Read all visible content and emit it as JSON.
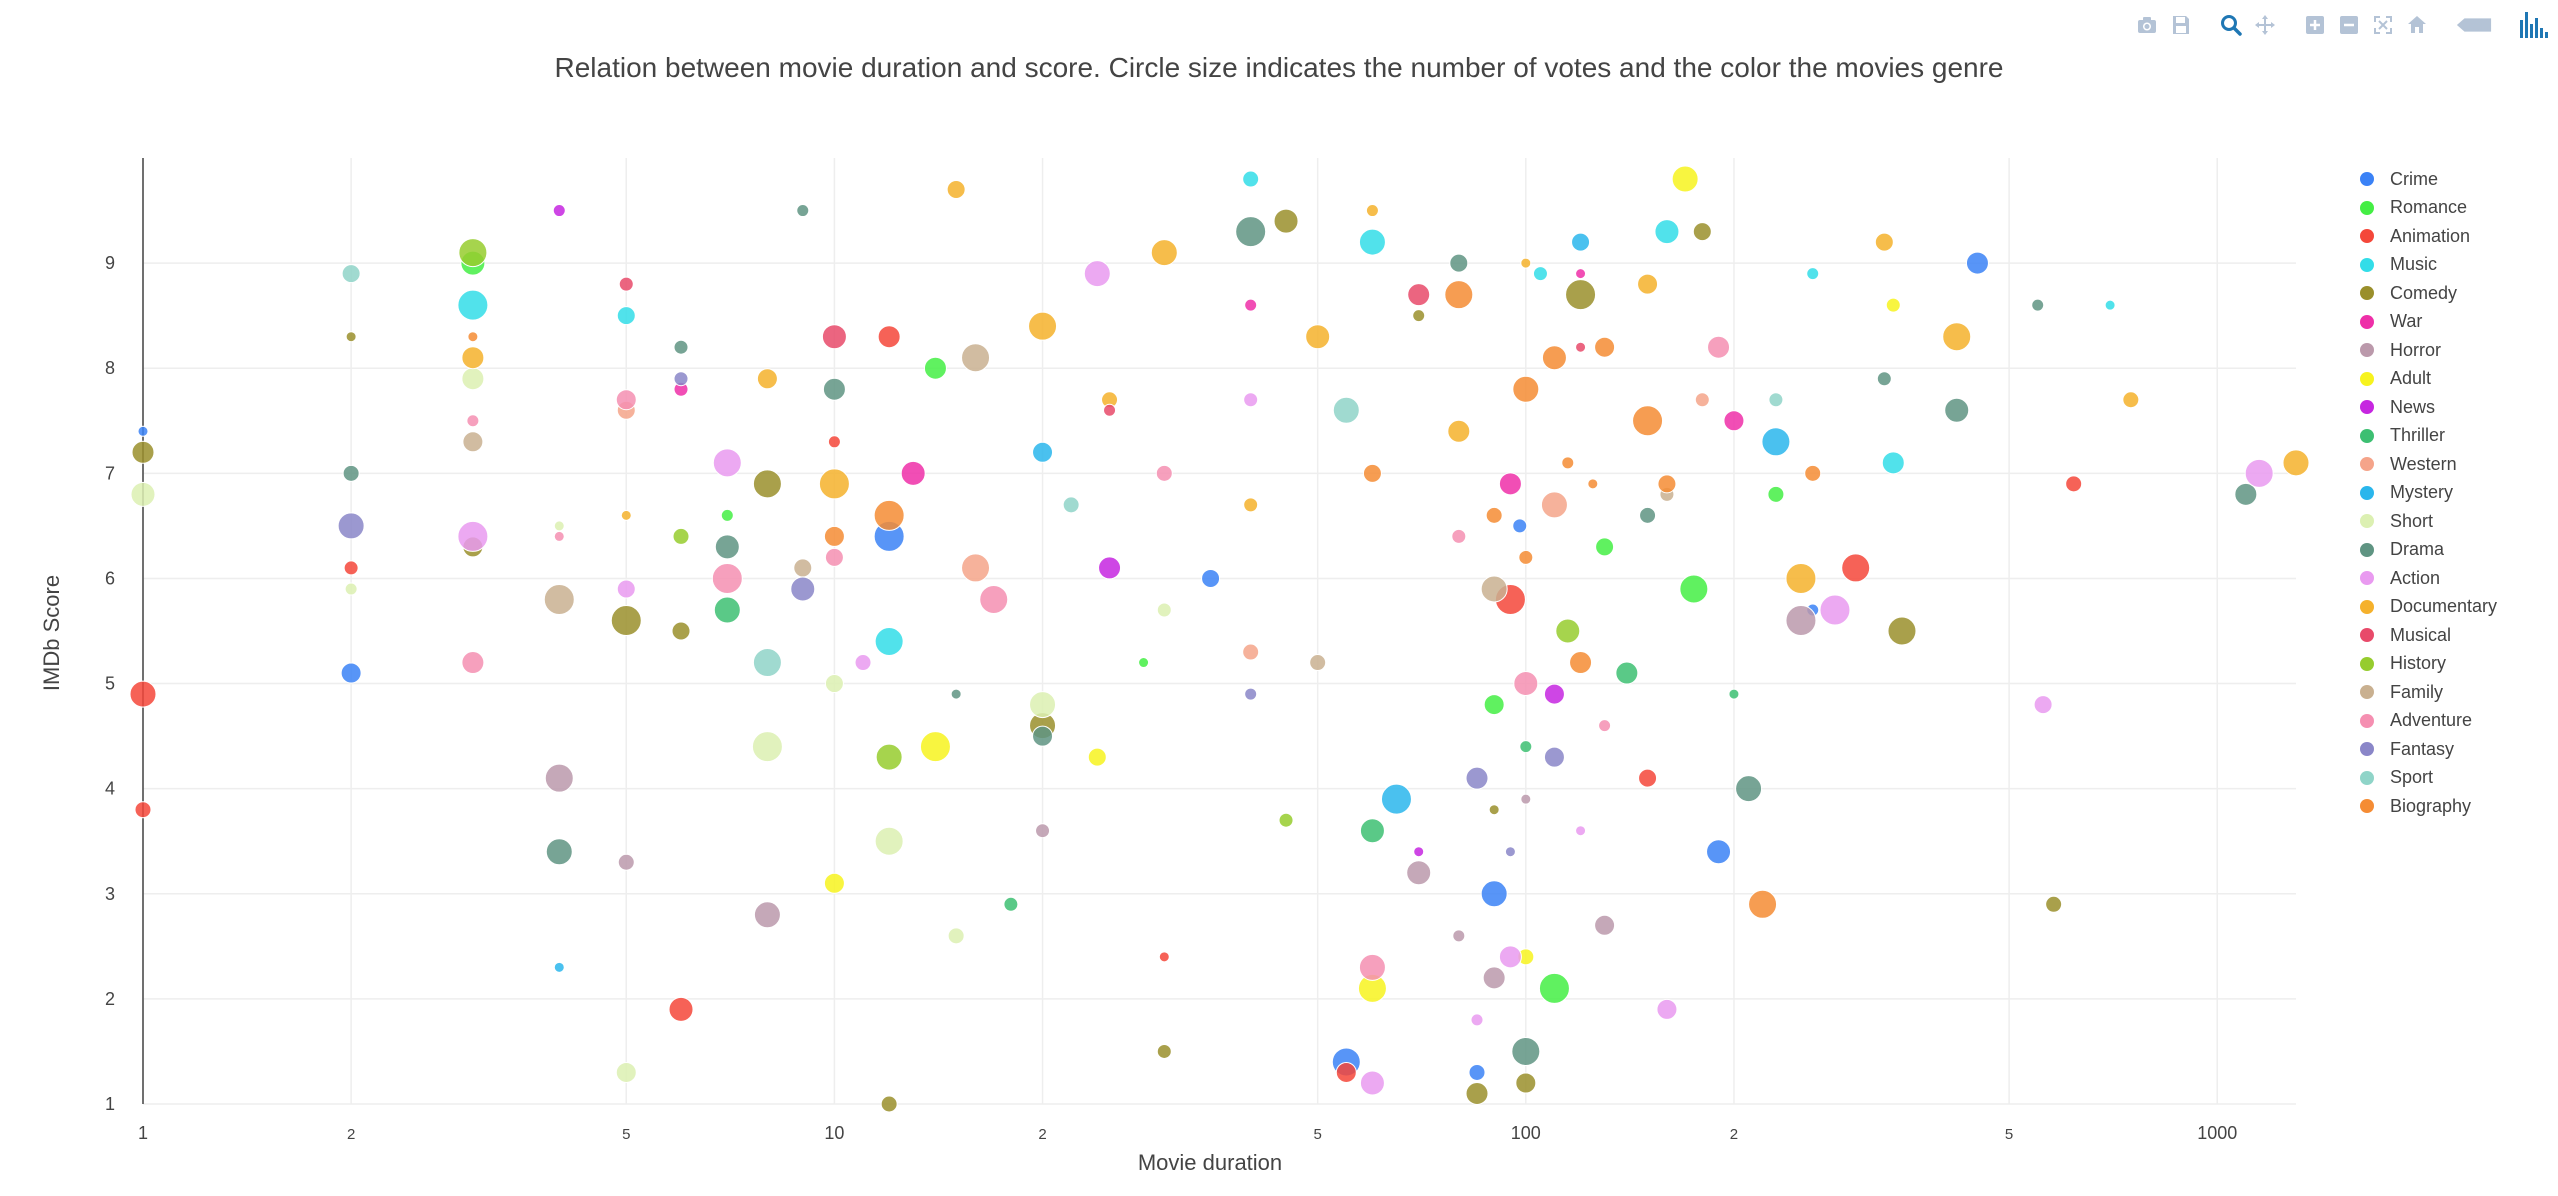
{
  "chart_data": {
    "type": "scatter",
    "title": "Relation between movie duration and score. Circle size indicates the number of votes and the color the movies genre",
    "xlabel": "Movie duration",
    "ylabel": "IMDb Score",
    "xscale": "log",
    "xlim": [
      1,
      1300
    ],
    "ylim": [
      1,
      10
    ],
    "grid": true,
    "legend_position": "right",
    "x_tick_labels": [
      "1",
      "2",
      "5",
      "10",
      "2",
      "5",
      "100",
      "2",
      "5",
      "1000"
    ],
    "y_tick_labels": [
      "1",
      "2",
      "3",
      "4",
      "5",
      "6",
      "7",
      "8",
      "9"
    ],
    "marker_size_meaning": "number of votes",
    "series": [
      {
        "name": "Crime",
        "color": "#3b82f6",
        "points": [
          [
            1,
            7.4
          ],
          [
            2,
            5.1
          ],
          [
            12,
            6.4
          ],
          [
            35,
            6.0
          ],
          [
            55,
            1.4
          ],
          [
            85,
            1.3
          ],
          [
            90,
            3.0
          ],
          [
            98,
            6.5
          ],
          [
            190,
            3.4
          ],
          [
            260,
            5.7
          ],
          [
            450,
            9.0
          ]
        ]
      },
      {
        "name": "Romance",
        "color": "#44ee44",
        "points": [
          [
            3,
            9.0
          ],
          [
            7,
            6.6
          ],
          [
            14,
            8.0
          ],
          [
            28,
            5.2
          ],
          [
            90,
            4.8
          ],
          [
            110,
            2.1
          ],
          [
            130,
            6.3
          ],
          [
            175,
            5.9
          ],
          [
            230,
            6.8
          ]
        ]
      },
      {
        "name": "Animation",
        "color": "#f4473a",
        "points": [
          [
            1,
            3.8
          ],
          [
            1,
            4.9
          ],
          [
            2,
            6.1
          ],
          [
            6,
            1.9
          ],
          [
            10,
            7.3
          ],
          [
            12,
            8.3
          ],
          [
            30,
            2.4
          ],
          [
            55,
            1.3
          ],
          [
            95,
            5.8
          ],
          [
            150,
            4.1
          ],
          [
            300,
            6.1
          ],
          [
            620,
            6.9
          ]
        ]
      },
      {
        "name": "Music",
        "color": "#33dde8",
        "points": [
          [
            3,
            8.6
          ],
          [
            5,
            8.5
          ],
          [
            12,
            5.4
          ],
          [
            40,
            9.8
          ],
          [
            60,
            9.2
          ],
          [
            105,
            8.9
          ],
          [
            160,
            9.3
          ],
          [
            260,
            8.9
          ],
          [
            340,
            7.1
          ],
          [
            700,
            8.6
          ]
        ]
      },
      {
        "name": "Comedy",
        "color": "#9a8f2b",
        "points": [
          [
            1,
            7.2
          ],
          [
            2,
            8.3
          ],
          [
            3,
            6.3
          ],
          [
            5,
            5.6
          ],
          [
            6,
            5.5
          ],
          [
            8,
            6.9
          ],
          [
            12,
            1.0
          ],
          [
            20,
            4.6
          ],
          [
            30,
            1.5
          ],
          [
            45,
            9.4
          ],
          [
            70,
            8.5
          ],
          [
            85,
            1.1
          ],
          [
            90,
            3.8
          ],
          [
            100,
            1.2
          ],
          [
            120,
            8.7
          ],
          [
            180,
            9.3
          ],
          [
            350,
            5.5
          ],
          [
            580,
            2.9
          ]
        ]
      },
      {
        "name": "War",
        "color": "#ee2fa8",
        "points": [
          [
            6,
            7.8
          ],
          [
            13,
            7.0
          ],
          [
            40,
            8.6
          ],
          [
            95,
            6.9
          ],
          [
            120,
            8.9
          ],
          [
            200,
            7.5
          ]
        ]
      },
      {
        "name": "Horror",
        "color": "#bb99ab",
        "points": [
          [
            4,
            4.1
          ],
          [
            5,
            3.3
          ],
          [
            8,
            2.8
          ],
          [
            20,
            3.6
          ],
          [
            70,
            3.2
          ],
          [
            80,
            2.6
          ],
          [
            90,
            2.2
          ],
          [
            100,
            3.9
          ],
          [
            130,
            2.7
          ],
          [
            250,
            5.6
          ]
        ]
      },
      {
        "name": "Adult",
        "color": "#f7f31e",
        "points": [
          [
            10,
            3.1
          ],
          [
            14,
            4.4
          ],
          [
            24,
            4.3
          ],
          [
            60,
            2.1
          ],
          [
            100,
            2.4
          ],
          [
            170,
            9.8
          ],
          [
            340,
            8.6
          ]
        ]
      },
      {
        "name": "News",
        "color": "#c626e0",
        "points": [
          [
            4,
            9.5
          ],
          [
            25,
            6.1
          ],
          [
            70,
            3.4
          ],
          [
            110,
            4.9
          ]
        ]
      },
      {
        "name": "Thriller",
        "color": "#3dbf72",
        "points": [
          [
            7,
            5.7
          ],
          [
            18,
            2.9
          ],
          [
            60,
            3.6
          ],
          [
            100,
            4.4
          ],
          [
            140,
            5.1
          ],
          [
            200,
            4.9
          ]
        ]
      },
      {
        "name": "Western",
        "color": "#f5a48a",
        "points": [
          [
            5,
            7.6
          ],
          [
            16,
            6.1
          ],
          [
            40,
            5.3
          ],
          [
            110,
            6.7
          ],
          [
            180,
            7.7
          ]
        ]
      },
      {
        "name": "Mystery",
        "color": "#2ab6ec",
        "points": [
          [
            4,
            2.3
          ],
          [
            20,
            7.2
          ],
          [
            65,
            3.9
          ],
          [
            120,
            9.2
          ],
          [
            230,
            7.3
          ]
        ]
      },
      {
        "name": "Short",
        "color": "#dcf0b2",
        "points": [
          [
            1,
            6.8
          ],
          [
            2,
            5.9
          ],
          [
            3,
            7.9
          ],
          [
            4,
            6.5
          ],
          [
            5,
            1.3
          ],
          [
            8,
            4.4
          ],
          [
            10,
            5.0
          ],
          [
            12,
            3.5
          ],
          [
            15,
            2.6
          ],
          [
            20,
            4.8
          ],
          [
            30,
            5.7
          ]
        ]
      },
      {
        "name": "Drama",
        "color": "#5f9482",
        "points": [
          [
            2,
            7.0
          ],
          [
            4,
            3.4
          ],
          [
            6,
            8.2
          ],
          [
            7,
            6.3
          ],
          [
            9,
            9.5
          ],
          [
            10,
            7.8
          ],
          [
            15,
            4.9
          ],
          [
            20,
            4.5
          ],
          [
            40,
            9.3
          ],
          [
            80,
            9.0
          ],
          [
            100,
            1.5
          ],
          [
            150,
            6.6
          ],
          [
            210,
            4.0
          ],
          [
            330,
            7.9
          ],
          [
            420,
            7.6
          ],
          [
            550,
            8.6
          ],
          [
            1100,
            6.8
          ]
        ]
      },
      {
        "name": "Action",
        "color": "#e99af0",
        "points": [
          [
            3,
            6.4
          ],
          [
            5,
            5.9
          ],
          [
            7,
            7.1
          ],
          [
            11,
            5.2
          ],
          [
            24,
            8.9
          ],
          [
            40,
            7.7
          ],
          [
            60,
            1.2
          ],
          [
            85,
            1.8
          ],
          [
            95,
            2.4
          ],
          [
            120,
            3.6
          ],
          [
            160,
            1.9
          ],
          [
            280,
            5.7
          ],
          [
            560,
            4.8
          ],
          [
            1150,
            7.0
          ]
        ]
      },
      {
        "name": "Documentary",
        "color": "#f5b12c",
        "points": [
          [
            3,
            8.1
          ],
          [
            5,
            6.6
          ],
          [
            8,
            7.9
          ],
          [
            10,
            6.9
          ],
          [
            15,
            9.7
          ],
          [
            20,
            8.4
          ],
          [
            25,
            7.7
          ],
          [
            30,
            9.1
          ],
          [
            40,
            6.7
          ],
          [
            50,
            8.3
          ],
          [
            60,
            9.5
          ],
          [
            80,
            7.4
          ],
          [
            100,
            9.0
          ],
          [
            150,
            8.8
          ],
          [
            250,
            6.0
          ],
          [
            330,
            9.2
          ],
          [
            420,
            8.3
          ],
          [
            750,
            7.7
          ],
          [
            1300,
            7.1
          ]
        ]
      },
      {
        "name": "Musical",
        "color": "#e84a6a",
        "points": [
          [
            5,
            8.8
          ],
          [
            10,
            8.3
          ],
          [
            25,
            7.6
          ],
          [
            70,
            8.7
          ],
          [
            120,
            8.2
          ]
        ]
      },
      {
        "name": "History",
        "color": "#96cc2e",
        "points": [
          [
            3,
            9.1
          ],
          [
            6,
            6.4
          ],
          [
            12,
            4.3
          ],
          [
            45,
            3.7
          ],
          [
            115,
            5.5
          ]
        ]
      },
      {
        "name": "Family",
        "color": "#c9b090",
        "points": [
          [
            3,
            7.3
          ],
          [
            4,
            5.8
          ],
          [
            9,
            6.1
          ],
          [
            16,
            8.1
          ],
          [
            50,
            5.2
          ],
          [
            90,
            5.9
          ],
          [
            160,
            6.8
          ]
        ]
      },
      {
        "name": "Adventure",
        "color": "#f58fb1",
        "points": [
          [
            3,
            7.5
          ],
          [
            3,
            5.2
          ],
          [
            4,
            6.4
          ],
          [
            5,
            7.7
          ],
          [
            7,
            6.0
          ],
          [
            10,
            6.2
          ],
          [
            17,
            5.8
          ],
          [
            30,
            7.0
          ],
          [
            60,
            2.3
          ],
          [
            80,
            6.4
          ],
          [
            100,
            5.0
          ],
          [
            130,
            4.6
          ],
          [
            190,
            8.2
          ]
        ]
      },
      {
        "name": "Fantasy",
        "color": "#8a86c8",
        "points": [
          [
            2,
            6.5
          ],
          [
            6,
            7.9
          ],
          [
            9,
            5.9
          ],
          [
            40,
            4.9
          ],
          [
            85,
            4.1
          ],
          [
            95,
            3.4
          ],
          [
            110,
            4.3
          ]
        ]
      },
      {
        "name": "Sport",
        "color": "#8fd4c8",
        "points": [
          [
            2,
            8.9
          ],
          [
            8,
            5.2
          ],
          [
            22,
            6.7
          ],
          [
            55,
            7.6
          ],
          [
            230,
            7.7
          ]
        ]
      },
      {
        "name": "Biography",
        "color": "#f58c34",
        "points": [
          [
            3,
            8.3
          ],
          [
            10,
            6.4
          ],
          [
            12,
            6.6
          ],
          [
            60,
            7.0
          ],
          [
            80,
            8.7
          ],
          [
            90,
            6.6
          ],
          [
            100,
            7.8
          ],
          [
            100,
            6.2
          ],
          [
            110,
            8.1
          ],
          [
            115,
            7.1
          ],
          [
            120,
            5.2
          ],
          [
            125,
            6.9
          ],
          [
            130,
            8.2
          ],
          [
            150,
            7.5
          ],
          [
            160,
            6.9
          ],
          [
            220,
            2.9
          ],
          [
            260,
            7.0
          ]
        ]
      }
    ]
  },
  "toolbar": {
    "buttons": [
      {
        "icon": "camera-icon"
      },
      {
        "icon": "save-icon"
      },
      {
        "icon": "zoom-icon"
      },
      {
        "icon": "pan-icon"
      },
      {
        "icon": "zoom-in-icon"
      },
      {
        "icon": "zoom-out-icon"
      },
      {
        "icon": "autoscale-icon"
      },
      {
        "icon": "home-icon"
      },
      {
        "icon": "hover-closest-icon"
      },
      {
        "icon": "plotly-logo-icon"
      }
    ],
    "active_color": "#1f77b4",
    "inactive_color": "#b4c3d6"
  }
}
